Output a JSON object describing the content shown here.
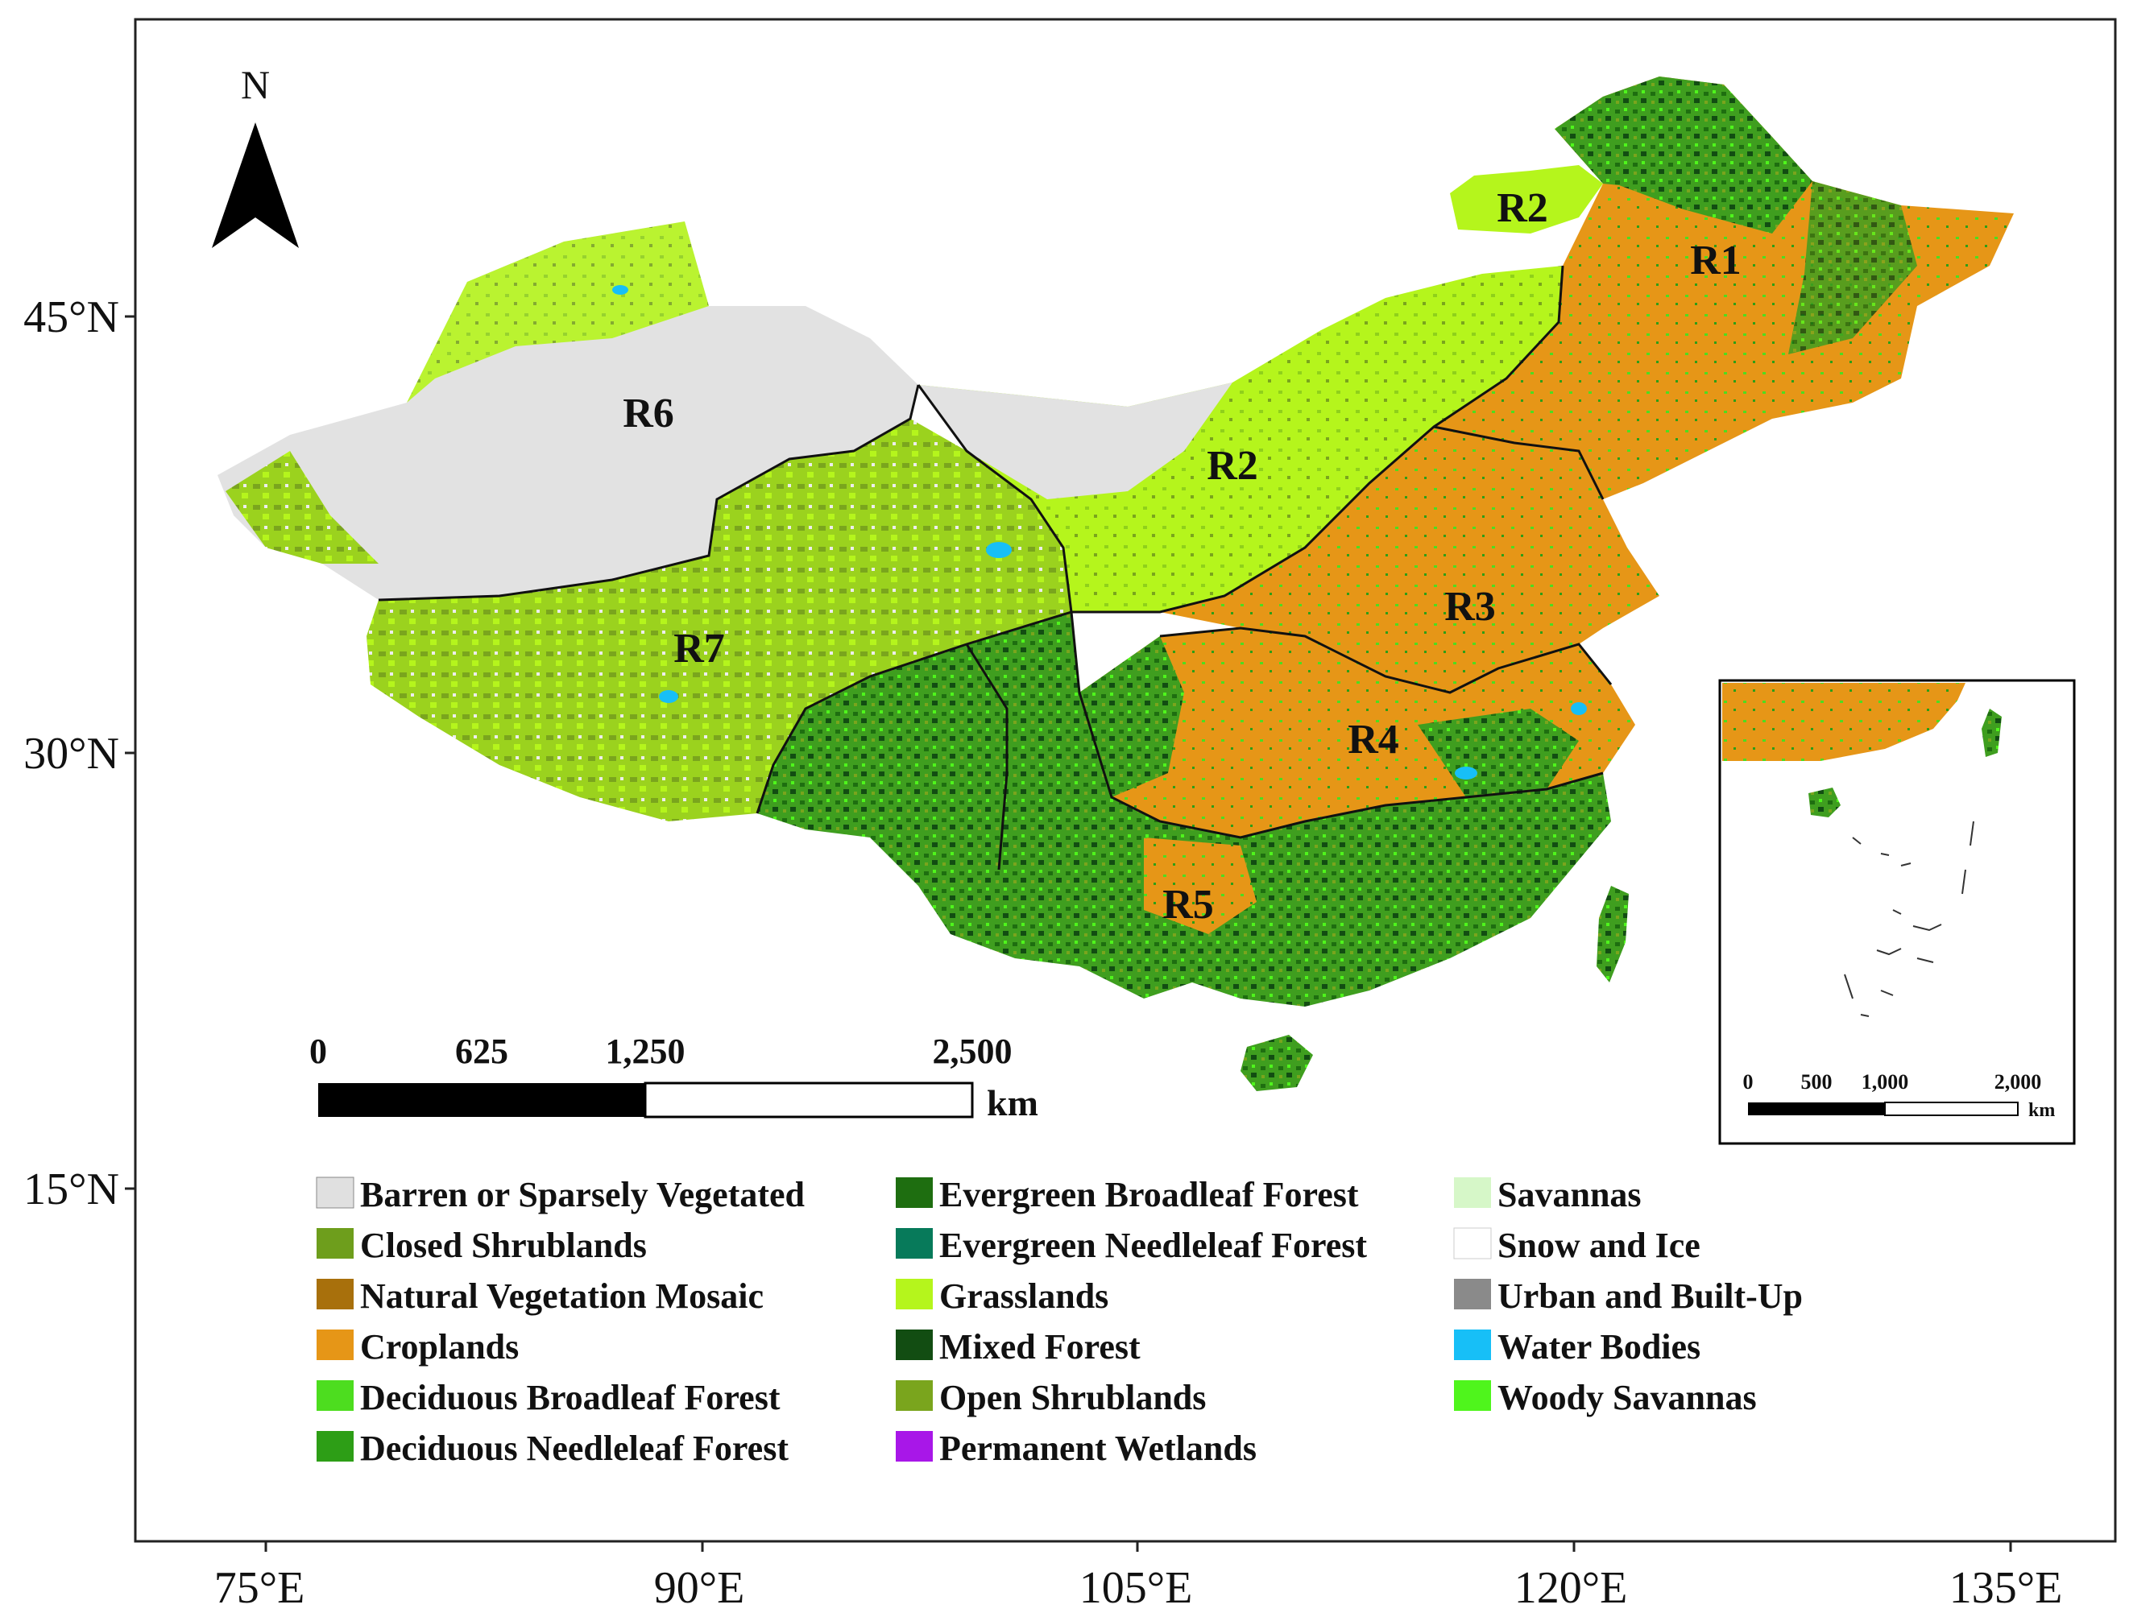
{
  "north_arrow": {
    "label": "N"
  },
  "axes": {
    "latitude_ticks": [
      "45°N",
      "30°N",
      "15°N"
    ],
    "longitude_ticks": [
      "75°E",
      "90°E",
      "105°E",
      "120°E",
      "135°E"
    ]
  },
  "regions": [
    "R1",
    "R2",
    "R2",
    "R3",
    "R4",
    "R5",
    "R6",
    "R7"
  ],
  "scale_bar": {
    "ticks": [
      "0",
      "625",
      "1,250",
      "2,500"
    ],
    "unit": "km"
  },
  "inset": {
    "scale_ticks": [
      "0",
      "500",
      "1,000",
      "2,000"
    ],
    "unit": "km"
  },
  "legend": [
    {
      "label": "Barren or Sparsely Vegetated",
      "color": "#e0e0e0"
    },
    {
      "label": "Closed Shrublands",
      "color": "#6e9e1c"
    },
    {
      "label": "Natural Vegetation Mosaic",
      "color": "#a8700c"
    },
    {
      "label": "Croplands",
      "color": "#e69617"
    },
    {
      "label": "Deciduous Broadleaf Forest",
      "color": "#4ddd1f"
    },
    {
      "label": "Deciduous Needleleaf Forest",
      "color": "#2d9e16"
    },
    {
      "label": "Evergreen Broadleaf Forest",
      "color": "#1e6e10"
    },
    {
      "label": "Evergreen Needleleaf Forest",
      "color": "#077a5a"
    },
    {
      "label": "Grasslands",
      "color": "#b5f51c"
    },
    {
      "label": "Mixed Forest",
      "color": "#124d12"
    },
    {
      "label": "Open Shrublands",
      "color": "#7aa51d"
    },
    {
      "label": "Permanent Wetlands",
      "color": "#a817e8"
    },
    {
      "label": "Savannas",
      "color": "#d6f7c8"
    },
    {
      "label": "Snow and Ice",
      "color": "#ffffff"
    },
    {
      "label": "Urban and Built-Up",
      "color": "#8a8a8a"
    },
    {
      "label": "Water Bodies",
      "color": "#17bff7"
    },
    {
      "label": "Woody Savannas",
      "color": "#4ff51c"
    }
  ]
}
